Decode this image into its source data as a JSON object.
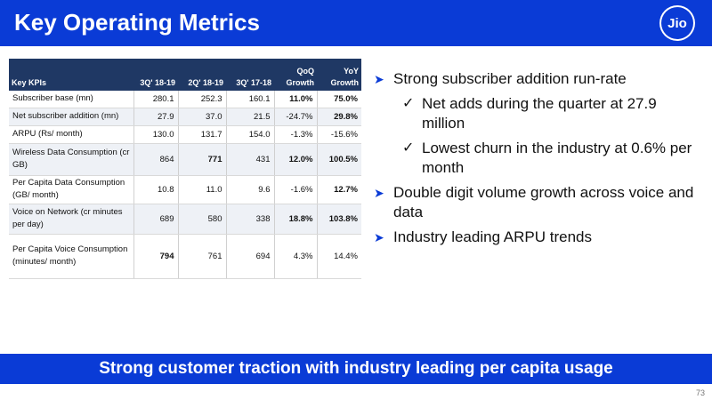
{
  "header": {
    "title": "Key Operating Metrics",
    "logo_text": "Jio"
  },
  "table": {
    "headers": [
      "Key KPIs",
      "3Q' 18-19",
      "2Q' 18-19",
      "3Q' 17-18",
      "QoQ Growth",
      "YoY Growth"
    ],
    "rows": [
      {
        "label": "Subscriber base (mn)",
        "values": [
          "280.1",
          "252.3",
          "160.1",
          "11.0%",
          "75.0%"
        ]
      },
      {
        "label": "Net subscriber addition (mn)",
        "values": [
          "27.9",
          "37.0",
          "21.5",
          "-24.7%",
          "29.8%"
        ]
      },
      {
        "label": "ARPU (Rs/ month)",
        "values": [
          "130.0",
          "131.7",
          "154.0",
          "-1.3%",
          "-15.6%"
        ]
      },
      {
        "label": "Wireless Data Consumption (cr GB)",
        "values": [
          "864",
          "771",
          "431",
          "12.0%",
          "100.5%"
        ]
      },
      {
        "label": "Per Capita Data Consumption (GB/ month)",
        "values": [
          "10.8",
          "11.0",
          "9.6",
          "-1.6%",
          "12.7%"
        ]
      },
      {
        "label": "Voice on Network (cr minutes per day)",
        "values": [
          "689",
          "580",
          "338",
          "18.8%",
          "103.8%"
        ]
      },
      {
        "label": "Per Capita Voice Consumption (minutes/ month)",
        "values": [
          "794",
          "761",
          "694",
          "4.3%",
          "14.4%"
        ]
      }
    ]
  },
  "bullets": {
    "b1": "Strong subscriber addition run-rate",
    "b1_sub1": "Net adds during the quarter at 27.9 million",
    "b1_sub2": "Lowest churn in the industry at 0.6% per month",
    "b2": "Double digit volume growth across voice and data",
    "b3": "Industry leading ARPU trends"
  },
  "footer": {
    "banner": "Strong customer traction with industry leading per capita usage",
    "page_number": "73"
  },
  "colors": {
    "brand_blue": "#0a3bd6",
    "table_header": "#1f3864"
  }
}
